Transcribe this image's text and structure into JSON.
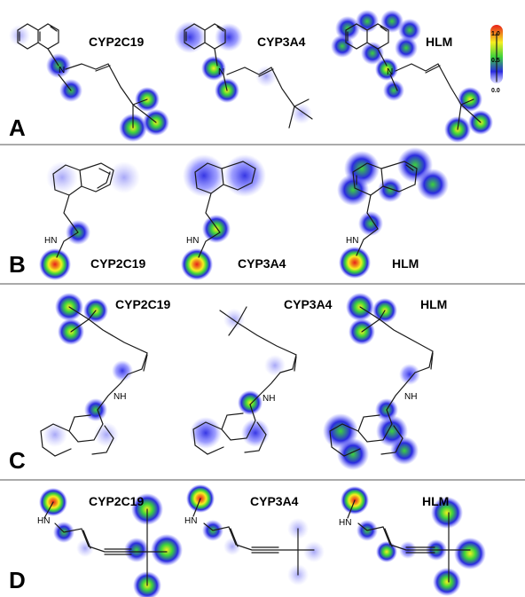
{
  "panels": [
    {
      "letter": "A",
      "labels": [
        "CYP2C19",
        "CYP3A4",
        "HLM"
      ]
    },
    {
      "letter": "B",
      "labels": [
        "CYP2C19",
        "CYP3A4",
        "HLM"
      ]
    },
    {
      "letter": "C",
      "labels": [
        "CYP2C19",
        "CYP3A4",
        "HLM"
      ]
    },
    {
      "letter": "D",
      "labels": [
        "CYP2C19",
        "CYP3A4",
        "HLM"
      ]
    }
  ],
  "atoms": {
    "amine_n": "N",
    "amine_nh": "NH",
    "amine_hn": "HN"
  },
  "scale": {
    "max": "1.0",
    "mid": "0.5",
    "min": "0.0"
  },
  "colors": {
    "bond": "#1a1a1a",
    "divider": "#555555"
  }
}
